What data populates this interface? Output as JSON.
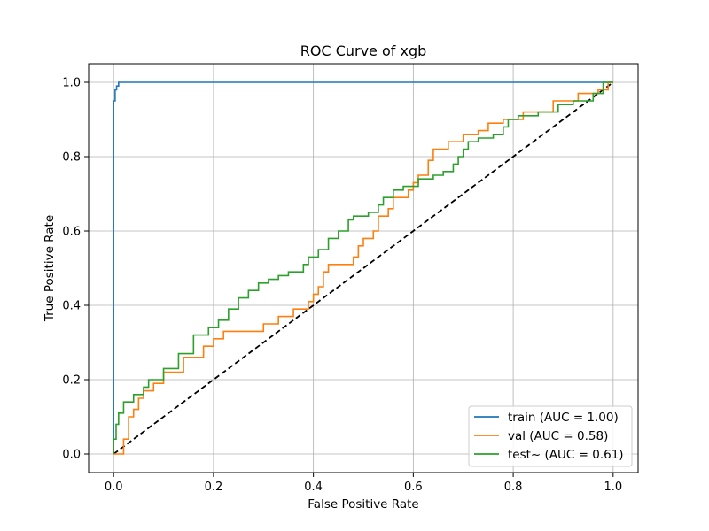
{
  "chart_data": {
    "type": "line",
    "title": "ROC Curve of xgb",
    "xlabel": "False Positive Rate",
    "ylabel": "True Positive Rate",
    "xlim": [
      -0.05,
      1.05
    ],
    "ylim": [
      -0.05,
      1.05
    ],
    "xticks": [
      "0.0",
      "0.2",
      "0.4",
      "0.6",
      "0.8",
      "1.0"
    ],
    "yticks": [
      "0.0",
      "0.2",
      "0.4",
      "0.6",
      "0.8",
      "1.0"
    ],
    "grid": true,
    "legend_position": "lower right",
    "series": [
      {
        "name": "train (AUC = 1.00)",
        "color": "#1f77b4",
        "points": [
          [
            0.0,
            0.0
          ],
          [
            0.0,
            0.95
          ],
          [
            0.003,
            0.95
          ],
          [
            0.003,
            0.98
          ],
          [
            0.006,
            0.98
          ],
          [
            0.006,
            0.99
          ],
          [
            0.01,
            0.99
          ],
          [
            0.01,
            1.0
          ],
          [
            1.0,
            1.0
          ]
        ]
      },
      {
        "name": "val (AUC = 0.58)",
        "color": "#ff7f0e",
        "points": [
          [
            0.0,
            0.0
          ],
          [
            0.02,
            0.0
          ],
          [
            0.02,
            0.04
          ],
          [
            0.03,
            0.04
          ],
          [
            0.03,
            0.1
          ],
          [
            0.04,
            0.1
          ],
          [
            0.04,
            0.12
          ],
          [
            0.05,
            0.12
          ],
          [
            0.05,
            0.15
          ],
          [
            0.06,
            0.15
          ],
          [
            0.06,
            0.17
          ],
          [
            0.08,
            0.17
          ],
          [
            0.08,
            0.19
          ],
          [
            0.1,
            0.19
          ],
          [
            0.1,
            0.22
          ],
          [
            0.14,
            0.22
          ],
          [
            0.14,
            0.26
          ],
          [
            0.18,
            0.26
          ],
          [
            0.18,
            0.29
          ],
          [
            0.2,
            0.29
          ],
          [
            0.2,
            0.31
          ],
          [
            0.22,
            0.31
          ],
          [
            0.22,
            0.33
          ],
          [
            0.3,
            0.33
          ],
          [
            0.3,
            0.35
          ],
          [
            0.33,
            0.35
          ],
          [
            0.33,
            0.37
          ],
          [
            0.36,
            0.37
          ],
          [
            0.36,
            0.39
          ],
          [
            0.39,
            0.39
          ],
          [
            0.39,
            0.41
          ],
          [
            0.4,
            0.41
          ],
          [
            0.4,
            0.43
          ],
          [
            0.41,
            0.43
          ],
          [
            0.41,
            0.45
          ],
          [
            0.42,
            0.45
          ],
          [
            0.42,
            0.49
          ],
          [
            0.43,
            0.49
          ],
          [
            0.43,
            0.51
          ],
          [
            0.48,
            0.51
          ],
          [
            0.48,
            0.53
          ],
          [
            0.49,
            0.53
          ],
          [
            0.49,
            0.56
          ],
          [
            0.5,
            0.56
          ],
          [
            0.5,
            0.58
          ],
          [
            0.52,
            0.58
          ],
          [
            0.52,
            0.6
          ],
          [
            0.53,
            0.6
          ],
          [
            0.53,
            0.64
          ],
          [
            0.55,
            0.64
          ],
          [
            0.55,
            0.66
          ],
          [
            0.56,
            0.66
          ],
          [
            0.56,
            0.69
          ],
          [
            0.59,
            0.69
          ],
          [
            0.59,
            0.71
          ],
          [
            0.6,
            0.71
          ],
          [
            0.6,
            0.73
          ],
          [
            0.61,
            0.73
          ],
          [
            0.61,
            0.75
          ],
          [
            0.63,
            0.75
          ],
          [
            0.63,
            0.79
          ],
          [
            0.64,
            0.79
          ],
          [
            0.64,
            0.82
          ],
          [
            0.67,
            0.82
          ],
          [
            0.67,
            0.84
          ],
          [
            0.7,
            0.84
          ],
          [
            0.7,
            0.86
          ],
          [
            0.73,
            0.86
          ],
          [
            0.73,
            0.87
          ],
          [
            0.75,
            0.87
          ],
          [
            0.75,
            0.89
          ],
          [
            0.78,
            0.89
          ],
          [
            0.78,
            0.9
          ],
          [
            0.82,
            0.9
          ],
          [
            0.82,
            0.92
          ],
          [
            0.88,
            0.92
          ],
          [
            0.88,
            0.95
          ],
          [
            0.93,
            0.95
          ],
          [
            0.93,
            0.97
          ],
          [
            0.97,
            0.97
          ],
          [
            0.97,
            0.98
          ],
          [
            0.99,
            0.98
          ],
          [
            0.99,
            1.0
          ],
          [
            1.0,
            1.0
          ]
        ]
      },
      {
        "name": "test~ (AUC = 0.61)",
        "color": "#2ca02c",
        "points": [
          [
            0.0,
            0.0
          ],
          [
            0.0,
            0.04
          ],
          [
            0.005,
            0.04
          ],
          [
            0.005,
            0.08
          ],
          [
            0.01,
            0.08
          ],
          [
            0.01,
            0.11
          ],
          [
            0.02,
            0.11
          ],
          [
            0.02,
            0.14
          ],
          [
            0.04,
            0.14
          ],
          [
            0.04,
            0.16
          ],
          [
            0.06,
            0.16
          ],
          [
            0.06,
            0.18
          ],
          [
            0.07,
            0.18
          ],
          [
            0.07,
            0.2
          ],
          [
            0.1,
            0.2
          ],
          [
            0.1,
            0.23
          ],
          [
            0.13,
            0.23
          ],
          [
            0.13,
            0.27
          ],
          [
            0.16,
            0.27
          ],
          [
            0.16,
            0.32
          ],
          [
            0.19,
            0.32
          ],
          [
            0.19,
            0.34
          ],
          [
            0.21,
            0.34
          ],
          [
            0.21,
            0.36
          ],
          [
            0.23,
            0.36
          ],
          [
            0.23,
            0.39
          ],
          [
            0.25,
            0.39
          ],
          [
            0.25,
            0.42
          ],
          [
            0.27,
            0.42
          ],
          [
            0.27,
            0.44
          ],
          [
            0.29,
            0.44
          ],
          [
            0.29,
            0.46
          ],
          [
            0.31,
            0.46
          ],
          [
            0.31,
            0.47
          ],
          [
            0.33,
            0.47
          ],
          [
            0.33,
            0.48
          ],
          [
            0.35,
            0.48
          ],
          [
            0.35,
            0.49
          ],
          [
            0.38,
            0.49
          ],
          [
            0.38,
            0.51
          ],
          [
            0.39,
            0.51
          ],
          [
            0.39,
            0.53
          ],
          [
            0.41,
            0.53
          ],
          [
            0.41,
            0.55
          ],
          [
            0.43,
            0.55
          ],
          [
            0.43,
            0.58
          ],
          [
            0.45,
            0.58
          ],
          [
            0.45,
            0.6
          ],
          [
            0.47,
            0.6
          ],
          [
            0.47,
            0.63
          ],
          [
            0.48,
            0.63
          ],
          [
            0.48,
            0.64
          ],
          [
            0.51,
            0.64
          ],
          [
            0.51,
            0.65
          ],
          [
            0.53,
            0.65
          ],
          [
            0.53,
            0.67
          ],
          [
            0.54,
            0.67
          ],
          [
            0.54,
            0.69
          ],
          [
            0.56,
            0.69
          ],
          [
            0.56,
            0.71
          ],
          [
            0.58,
            0.71
          ],
          [
            0.58,
            0.72
          ],
          [
            0.61,
            0.72
          ],
          [
            0.61,
            0.74
          ],
          [
            0.64,
            0.74
          ],
          [
            0.64,
            0.75
          ],
          [
            0.66,
            0.75
          ],
          [
            0.66,
            0.76
          ],
          [
            0.68,
            0.76
          ],
          [
            0.68,
            0.78
          ],
          [
            0.69,
            0.78
          ],
          [
            0.69,
            0.8
          ],
          [
            0.7,
            0.8
          ],
          [
            0.7,
            0.82
          ],
          [
            0.71,
            0.82
          ],
          [
            0.71,
            0.84
          ],
          [
            0.73,
            0.84
          ],
          [
            0.73,
            0.85
          ],
          [
            0.76,
            0.85
          ],
          [
            0.76,
            0.86
          ],
          [
            0.78,
            0.86
          ],
          [
            0.78,
            0.88
          ],
          [
            0.79,
            0.88
          ],
          [
            0.79,
            0.9
          ],
          [
            0.81,
            0.9
          ],
          [
            0.81,
            0.91
          ],
          [
            0.85,
            0.91
          ],
          [
            0.85,
            0.92
          ],
          [
            0.89,
            0.92
          ],
          [
            0.89,
            0.94
          ],
          [
            0.92,
            0.94
          ],
          [
            0.92,
            0.95
          ],
          [
            0.96,
            0.95
          ],
          [
            0.96,
            0.97
          ],
          [
            0.98,
            0.97
          ],
          [
            0.98,
            1.0
          ],
          [
            1.0,
            1.0
          ]
        ]
      }
    ],
    "diagonal": {
      "color": "#000000",
      "dash": true,
      "points": [
        [
          0,
          0
        ],
        [
          1,
          1
        ]
      ]
    }
  }
}
